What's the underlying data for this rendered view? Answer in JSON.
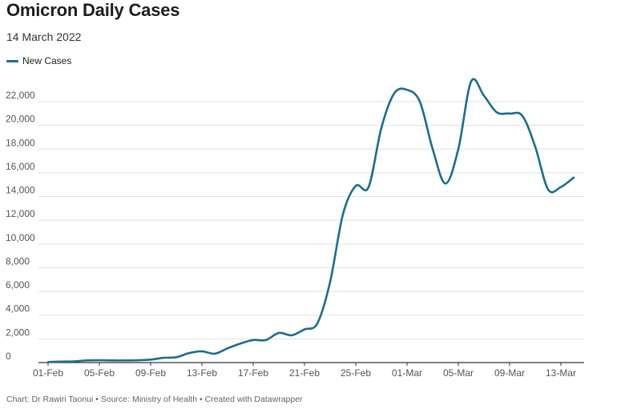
{
  "title": "Omicron Daily Cases",
  "subtitle": "14 March 2022",
  "footer": "Chart: Dr Rawiri Taonui • Source: Ministry of Health • Created with Datawrapper",
  "chart_data": {
    "type": "line",
    "title": "Omicron Daily Cases",
    "subtitle": "14 March 2022",
    "xlabel": "",
    "ylabel": "",
    "ylim": [
      0,
      22000
    ],
    "yticks": [
      0,
      2000,
      4000,
      6000,
      8000,
      10000,
      12000,
      14000,
      16000,
      18000,
      20000,
      22000
    ],
    "ytick_labels": [
      "0",
      "2,000",
      "4,000",
      "6,000",
      "8,000",
      "10,000",
      "12,000",
      "14,000",
      "16,000",
      "18,000",
      "20,000",
      "22,000"
    ],
    "xtick_labels": [
      "01-Feb",
      "05-Feb",
      "09-Feb",
      "13-Feb",
      "17-Feb",
      "21-Feb",
      "25-Feb",
      "01-Mar",
      "05-Mar",
      "09-Mar",
      "13-Mar"
    ],
    "xtick_days": [
      0,
      4,
      8,
      12,
      16,
      20,
      24,
      28,
      32,
      36,
      40
    ],
    "grid": true,
    "legend_position": "top-left",
    "color": "#1a6e8e",
    "series": [
      {
        "name": "New Cases",
        "x": [
          0,
          1,
          2,
          3,
          4,
          5,
          6,
          7,
          8,
          9,
          10,
          11,
          12,
          13,
          14,
          15,
          16,
          17,
          18,
          19,
          20,
          21,
          22,
          23,
          24,
          25,
          26,
          27,
          28,
          29,
          30,
          31,
          32,
          33,
          34,
          35,
          36,
          37,
          38,
          39,
          40,
          41
        ],
        "values": [
          50,
          80,
          100,
          180,
          200,
          180,
          180,
          200,
          250,
          400,
          450,
          800,
          950,
          750,
          1200,
          1600,
          1900,
          1900,
          2500,
          2300,
          2800,
          3300,
          6800,
          12500,
          14900,
          14800,
          19800,
          22700,
          23000,
          22000,
          18000,
          15100,
          18000,
          23700,
          22500,
          21100,
          21000,
          20800,
          18200,
          14600,
          14800,
          15600
        ]
      }
    ]
  }
}
